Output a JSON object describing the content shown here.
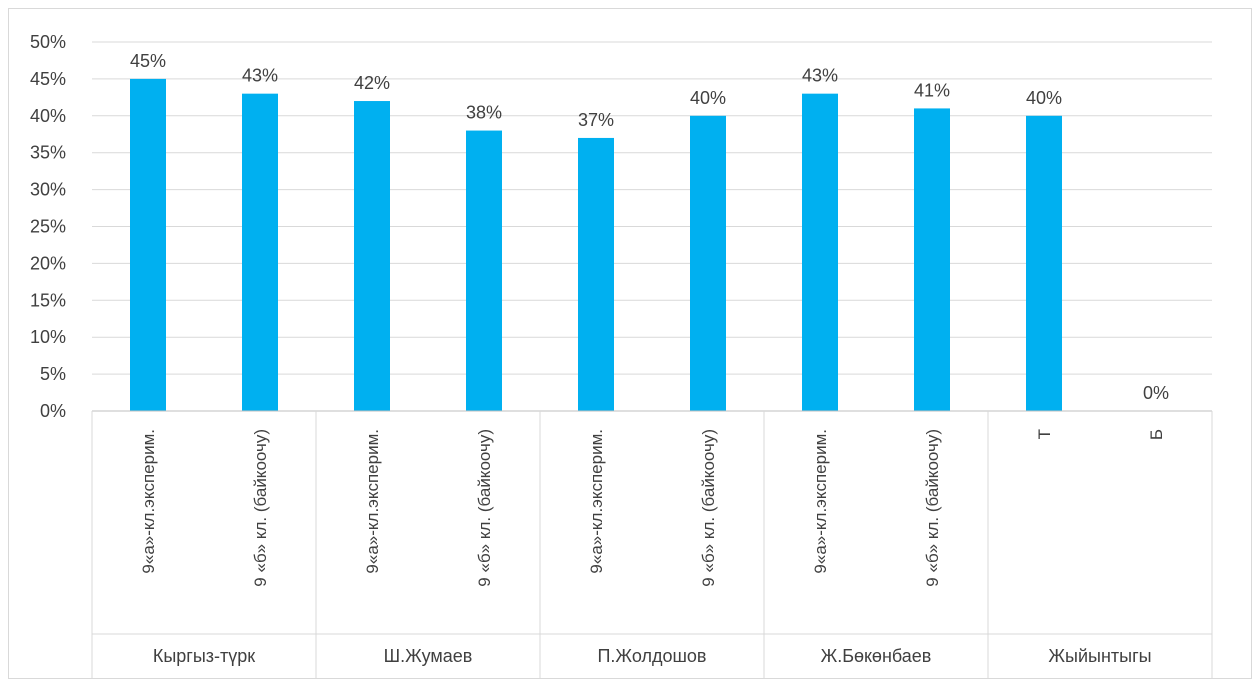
{
  "chart_data": {
    "type": "bar",
    "title": "",
    "xlabel": "",
    "ylabel": "",
    "ylim": [
      0,
      0.5
    ],
    "y_ticks": [
      "0%",
      "5%",
      "10%",
      "15%",
      "20%",
      "25%",
      "30%",
      "35%",
      "40%",
      "45%",
      "50%"
    ],
    "grid": true,
    "bar_color": "#00b0f0",
    "groups": [
      "Кыргыз-түрк",
      "Ш.Жумаев",
      "П.Жолдошов",
      "Ж.Бөкөнбаев",
      "Жыйынтыгы"
    ],
    "categories": [
      {
        "group": 0,
        "label": "9«а»-кл.эксперим."
      },
      {
        "group": 0,
        "label": "9 «б» кл. (байкоочу)"
      },
      {
        "group": 1,
        "label": "9«а»-кл.эксперим."
      },
      {
        "group": 1,
        "label": "9 «б» кл. (байкоочу)"
      },
      {
        "group": 2,
        "label": "9«а»-кл.эксперим."
      },
      {
        "group": 2,
        "label": "9 «б» кл. (байкоочу)"
      },
      {
        "group": 3,
        "label": "9«а»-кл.эксперим."
      },
      {
        "group": 3,
        "label": "9 «б» кл. (байкоочу)"
      },
      {
        "group": 4,
        "label": "Т"
      },
      {
        "group": 4,
        "label": "Б"
      }
    ],
    "values": [
      0.45,
      0.43,
      0.42,
      0.38,
      0.37,
      0.4,
      0.43,
      0.41,
      0.4,
      0.0
    ],
    "data_labels": [
      "45%",
      "43%",
      "42%",
      "38%",
      "37%",
      "40%",
      "43%",
      "41%",
      "40%",
      "0%"
    ]
  }
}
